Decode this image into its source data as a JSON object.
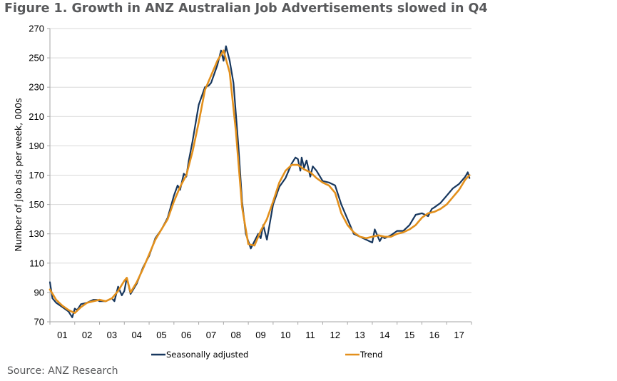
{
  "title": "Figure 1. Growth in ANZ Australian Job Advertisements slowed in Q4",
  "source": "Source: ANZ Research",
  "chart_data": {
    "type": "line",
    "ylabel": "Number of job ads per week, 000s",
    "ylim": [
      70,
      270
    ],
    "yticks": [
      "70",
      "90",
      "110",
      "130",
      "150",
      "170",
      "190",
      "210",
      "230",
      "250",
      "270"
    ],
    "xlim": [
      2001,
      2018
    ],
    "x_tick_labels": [
      "01",
      "02",
      "03",
      "04",
      "05",
      "06",
      "07",
      "08",
      "09",
      "10",
      "11",
      "12",
      "13",
      "14",
      "15",
      "16",
      "17"
    ],
    "grid": "horizontal",
    "legend_position": "bottom",
    "series": [
      {
        "name": "Seasonally adjusted",
        "color": "#17375e",
        "x": [
          2001.0,
          2001.1,
          2001.25,
          2001.5,
          2001.75,
          2001.9,
          2002.0,
          2002.1,
          2002.25,
          2002.5,
          2002.75,
          2002.9,
          2003.0,
          2003.25,
          2003.5,
          2003.6,
          2003.75,
          2003.9,
          2004.0,
          2004.1,
          2004.25,
          2004.5,
          2004.75,
          2005.0,
          2005.25,
          2005.5,
          2005.75,
          2006.0,
          2006.15,
          2006.25,
          2006.4,
          2006.5,
          2006.6,
          2006.75,
          2007.0,
          2007.25,
          2007.4,
          2007.5,
          2007.75,
          2007.9,
          2008.0,
          2008.1,
          2008.25,
          2008.4,
          2008.6,
          2008.75,
          2008.9,
          2009.1,
          2009.25,
          2009.4,
          2009.5,
          2009.6,
          2009.75,
          2010.0,
          2010.25,
          2010.5,
          2010.75,
          2010.9,
          2011.0,
          2011.1,
          2011.15,
          2011.25,
          2011.35,
          2011.5,
          2011.6,
          2011.75,
          2012.0,
          2012.25,
          2012.5,
          2012.75,
          2013.0,
          2013.25,
          2013.5,
          2013.75,
          2014.0,
          2014.1,
          2014.3,
          2014.4,
          2014.5,
          2014.75,
          2015.0,
          2015.25,
          2015.5,
          2015.75,
          2016.0,
          2016.25,
          2016.4,
          2016.5,
          2016.75,
          2017.0,
          2017.25,
          2017.5,
          2017.75,
          2017.85,
          2017.92
        ],
        "y": [
          97,
          86,
          83,
          80,
          77,
          73,
          79,
          78,
          82,
          83,
          85,
          85,
          84,
          84,
          86,
          84,
          94,
          88,
          91,
          100,
          89,
          96,
          107,
          115,
          127,
          133,
          141,
          156,
          163,
          160,
          171,
          169,
          180,
          193,
          218,
          230,
          231,
          233,
          245,
          255,
          248,
          258,
          248,
          233,
          190,
          152,
          130,
          120,
          125,
          130,
          127,
          136,
          126,
          150,
          162,
          168,
          178,
          182,
          181,
          173,
          182,
          175,
          180,
          169,
          176,
          173,
          166,
          165,
          163,
          150,
          140,
          130,
          128,
          126,
          124,
          133,
          125,
          128,
          127,
          129,
          132,
          132,
          136,
          143,
          144,
          142,
          147,
          148,
          151,
          156,
          161,
          164,
          169,
          172,
          168
        ]
      },
      {
        "name": "Trend",
        "color": "#e3901c",
        "x": [
          2001.0,
          2001.25,
          2001.5,
          2001.75,
          2002.0,
          2002.25,
          2002.5,
          2002.75,
          2003.0,
          2003.25,
          2003.5,
          2003.75,
          2004.0,
          2004.1,
          2004.25,
          2004.5,
          2004.75,
          2005.0,
          2005.25,
          2005.5,
          2005.75,
          2006.0,
          2006.25,
          2006.5,
          2006.75,
          2007.0,
          2007.25,
          2007.5,
          2007.75,
          2008.0,
          2008.25,
          2008.5,
          2008.75,
          2009.0,
          2009.25,
          2009.5,
          2009.75,
          2010.0,
          2010.25,
          2010.5,
          2010.75,
          2011.0,
          2011.25,
          2011.5,
          2011.75,
          2012.0,
          2012.25,
          2012.5,
          2012.75,
          2013.0,
          2013.25,
          2013.5,
          2013.75,
          2014.0,
          2014.25,
          2014.5,
          2014.75,
          2015.0,
          2015.25,
          2015.5,
          2015.75,
          2016.0,
          2016.25,
          2016.5,
          2016.75,
          2017.0,
          2017.25,
          2017.5,
          2017.75,
          2017.92
        ],
        "y": [
          92,
          85,
          81,
          78,
          76,
          80,
          83,
          84,
          85,
          84,
          86,
          91,
          98,
          100,
          90,
          97,
          106,
          116,
          126,
          133,
          140,
          152,
          162,
          170,
          186,
          206,
          228,
          238,
          248,
          255,
          240,
          200,
          148,
          123,
          122,
          132,
          140,
          152,
          165,
          173,
          177,
          177,
          174,
          172,
          168,
          165,
          163,
          158,
          144,
          136,
          131,
          128,
          127,
          128,
          129,
          128,
          128,
          130,
          131,
          133,
          136,
          141,
          144,
          145,
          147,
          150,
          155,
          160,
          167,
          170
        ]
      }
    ]
  }
}
